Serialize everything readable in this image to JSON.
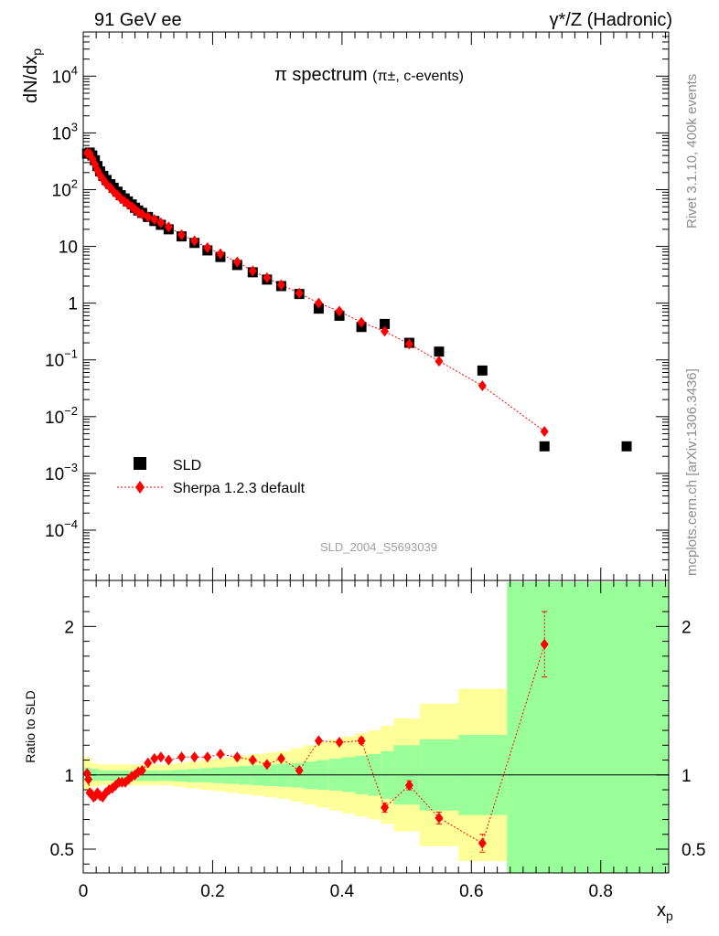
{
  "header": {
    "left": "91 GeV ee",
    "right": "γ*/Z (Hadronic)"
  },
  "plot_title": {
    "main": "π spectrum",
    "sub": "(π±, c-events)"
  },
  "side_labels": {
    "rivet": "Rivet 3.1.10,  400k events",
    "mcplots": "mcplots.cern.ch [arXiv:1306.3436]"
  },
  "watermark": "SLD_2004_S5693039",
  "colors": {
    "data": "#000000",
    "mc": "#ff0000",
    "band_inner": "#99ff99",
    "band_outer": "#ffff99"
  },
  "chart_data": [
    {
      "type": "scatter",
      "yscale": "log",
      "xlim": [
        0,
        0.905
      ],
      "ylim": [
        1.3e-05,
        60000
      ],
      "ylabel": "dN/dxp",
      "legend": {
        "placement": "bottom-left",
        "entries": [
          "SLD",
          "Sherpa 1.2.3 default"
        ]
      },
      "y_ticks": [
        {
          "v": 0.0001,
          "label_base": "10",
          "label_exp": "−4"
        },
        {
          "v": 0.001,
          "label_base": "10",
          "label_exp": "−3"
        },
        {
          "v": 0.01,
          "label_base": "10",
          "label_exp": "−2"
        },
        {
          "v": 0.1,
          "label_base": "10",
          "label_exp": "−1"
        },
        {
          "v": 1,
          "label_base": "1",
          "label_exp": ""
        },
        {
          "v": 10,
          "label_base": "10",
          "label_exp": ""
        },
        {
          "v": 100,
          "label_base": "10",
          "label_exp": "2"
        },
        {
          "v": 1000,
          "label_base": "10",
          "label_exp": "3"
        },
        {
          "v": 10000,
          "label_base": "10",
          "label_exp": "4"
        }
      ],
      "series": [
        {
          "name": "SLD",
          "marker": "square",
          "x": [
            0.006,
            0.01,
            0.014,
            0.018,
            0.022,
            0.026,
            0.031,
            0.036,
            0.042,
            0.047,
            0.053,
            0.058,
            0.064,
            0.069,
            0.075,
            0.08,
            0.085,
            0.091,
            0.1,
            0.11,
            0.12,
            0.132,
            0.152,
            0.172,
            0.192,
            0.212,
            0.238,
            0.262,
            0.284,
            0.306,
            0.334,
            0.364,
            0.396,
            0.43,
            0.466,
            0.504,
            0.55,
            0.617,
            0.713,
            0.84
          ],
          "y": [
            430,
            450,
            400,
            330,
            260,
            210,
            175,
            148,
            125,
            108,
            92,
            80,
            70,
            62,
            55,
            48,
            43,
            39,
            33,
            28,
            24,
            20,
            15,
            11.5,
            8.5,
            6.5,
            4.7,
            3.5,
            2.6,
            2.0,
            1.45,
            0.8,
            0.6,
            0.38,
            0.43,
            0.2,
            0.14,
            0.065,
            0.003,
            0.003
          ]
        },
        {
          "name": "Sherpa 1.2.3 default",
          "marker": "diamond",
          "x": [
            0.006,
            0.01,
            0.014,
            0.018,
            0.022,
            0.026,
            0.031,
            0.036,
            0.042,
            0.047,
            0.053,
            0.058,
            0.064,
            0.069,
            0.075,
            0.08,
            0.085,
            0.091,
            0.1,
            0.11,
            0.12,
            0.132,
            0.152,
            0.172,
            0.192,
            0.212,
            0.238,
            0.262,
            0.284,
            0.306,
            0.334,
            0.364,
            0.396,
            0.43,
            0.466,
            0.504,
            0.55,
            0.617,
            0.713
          ],
          "y": [
            440,
            430,
            350,
            280,
            220,
            180,
            150,
            125,
            108,
            92,
            80,
            70,
            62,
            56,
            50,
            45,
            40,
            37,
            33,
            30,
            26,
            22,
            16,
            12.5,
            9.5,
            7.4,
            5.3,
            3.7,
            2.8,
            2.1,
            1.5,
            1.0,
            0.72,
            0.46,
            0.32,
            0.19,
            0.095,
            0.035,
            0.0055
          ]
        }
      ]
    },
    {
      "type": "scatter",
      "xlim": [
        0,
        0.905
      ],
      "ylim": [
        0.34,
        2.31
      ],
      "xlabel": "xp",
      "ylabel": "Ratio to SLD",
      "x_ticks": [
        {
          "v": 0,
          "label": "0"
        },
        {
          "v": 0.2,
          "label": "0.2"
        },
        {
          "v": 0.4,
          "label": "0.4"
        },
        {
          "v": 0.6,
          "label": "0.6"
        },
        {
          "v": 0.8,
          "label": "0.8"
        }
      ],
      "y_ticks": [
        {
          "v": 0.5,
          "label": "0.5"
        },
        {
          "v": 1,
          "label": "1"
        },
        {
          "v": 2,
          "label": "2"
        }
      ],
      "reference_line": 1,
      "bands": {
        "edges": [
          0,
          0.012,
          0.024,
          0.04,
          0.06,
          0.08,
          0.1,
          0.12,
          0.14,
          0.16,
          0.18,
          0.2,
          0.22,
          0.24,
          0.26,
          0.28,
          0.3,
          0.32,
          0.34,
          0.36,
          0.38,
          0.4,
          0.42,
          0.44,
          0.46,
          0.48,
          0.52,
          0.58,
          0.655,
          0.905
        ],
        "inner_lo": [
          0.96,
          0.96,
          0.96,
          0.96,
          0.96,
          0.96,
          0.96,
          0.96,
          0.955,
          0.95,
          0.95,
          0.945,
          0.94,
          0.935,
          0.93,
          0.925,
          0.92,
          0.915,
          0.905,
          0.9,
          0.895,
          0.885,
          0.87,
          0.86,
          0.84,
          0.8,
          0.76,
          0.73,
          0.3
        ],
        "inner_hi": [
          1.05,
          1.04,
          1.03,
          1.03,
          1.03,
          1.03,
          1.03,
          1.03,
          1.035,
          1.04,
          1.045,
          1.05,
          1.055,
          1.06,
          1.065,
          1.07,
          1.075,
          1.08,
          1.09,
          1.1,
          1.11,
          1.12,
          1.13,
          1.14,
          1.16,
          1.2,
          1.24,
          1.27,
          2.3
        ],
        "outer_lo": [
          0.9,
          0.92,
          0.93,
          0.93,
          0.93,
          0.93,
          0.93,
          0.93,
          0.92,
          0.91,
          0.9,
          0.89,
          0.88,
          0.87,
          0.86,
          0.85,
          0.84,
          0.82,
          0.8,
          0.78,
          0.76,
          0.74,
          0.72,
          0.7,
          0.67,
          0.62,
          0.52,
          0.42,
          0.3
        ],
        "outer_hi": [
          1.12,
          1.08,
          1.07,
          1.07,
          1.07,
          1.07,
          1.07,
          1.07,
          1.08,
          1.09,
          1.1,
          1.11,
          1.12,
          1.13,
          1.14,
          1.15,
          1.16,
          1.18,
          1.2,
          1.22,
          1.24,
          1.26,
          1.28,
          1.3,
          1.33,
          1.38,
          1.48,
          1.58,
          2.3
        ]
      },
      "series": [
        {
          "name": "Sherpa 1.2.3 default",
          "x": [
            0.006,
            0.008,
            0.01,
            0.013,
            0.016,
            0.019,
            0.022,
            0.026,
            0.03,
            0.035,
            0.04,
            0.045,
            0.05,
            0.055,
            0.06,
            0.065,
            0.07,
            0.075,
            0.08,
            0.085,
            0.091,
            0.1,
            0.11,
            0.12,
            0.132,
            0.152,
            0.172,
            0.192,
            0.212,
            0.238,
            0.262,
            0.284,
            0.306,
            0.334,
            0.364,
            0.396,
            0.43,
            0.466,
            0.504,
            0.55,
            0.617,
            0.713
          ],
          "y": [
            1.01,
            0.97,
            0.88,
            0.87,
            0.85,
            0.86,
            0.88,
            0.86,
            0.85,
            0.88,
            0.9,
            0.91,
            0.93,
            0.95,
            0.95,
            0.95,
            0.97,
            0.99,
            1.0,
            1.02,
            1.03,
            1.08,
            1.11,
            1.12,
            1.1,
            1.12,
            1.12,
            1.12,
            1.14,
            1.12,
            1.1,
            1.07,
            1.11,
            1.03,
            1.23,
            1.22,
            1.23,
            0.78,
            0.93,
            0.71,
            0.54,
            1.88
          ],
          "err": [
            0.01,
            0.01,
            0.01,
            0.01,
            0.01,
            0.01,
            0.01,
            0.01,
            0.01,
            0.01,
            0.01,
            0.01,
            0.01,
            0.01,
            0.01,
            0.01,
            0.01,
            0.01,
            0.01,
            0.01,
            0.01,
            0.01,
            0.01,
            0.01,
            0.01,
            0.01,
            0.01,
            0.01,
            0.01,
            0.01,
            0.01,
            0.01,
            0.01,
            0.01,
            0.01,
            0.01,
            0.02,
            0.03,
            0.03,
            0.04,
            0.06,
            0.22
          ]
        }
      ]
    }
  ]
}
